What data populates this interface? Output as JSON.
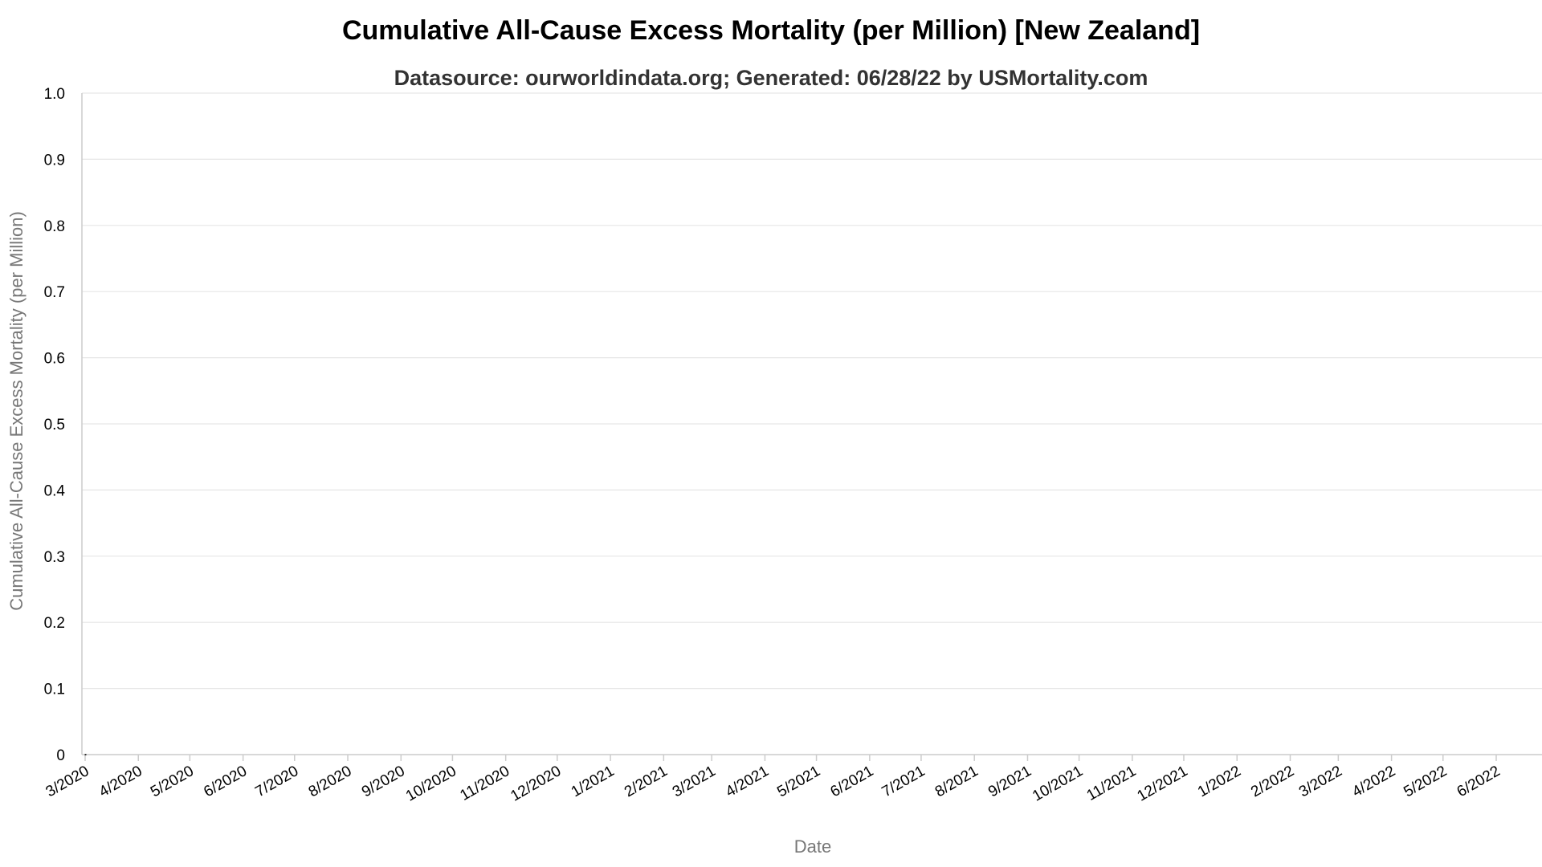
{
  "chart_data": {
    "type": "line",
    "title": "Cumulative All-Cause Excess Mortality (per Million) [New Zealand]",
    "subtitle": "Datasource: ourworldindata.org; Generated: 06/28/22 by USMortality.com",
    "xlabel": "Date",
    "ylabel": "Cumulative All-Cause Excess Mortality (per Million)",
    "ylim": [
      0,
      1
    ],
    "y_ticks": [
      "0",
      "0.1",
      "0.2",
      "0.3",
      "0.4",
      "0.5",
      "0.6",
      "0.7",
      "0.8",
      "0.9",
      "1.0"
    ],
    "x_ticks": [
      "3/2020",
      "4/2020",
      "5/2020",
      "6/2020",
      "7/2020",
      "8/2020",
      "9/2020",
      "10/2020",
      "11/2020",
      "12/2020",
      "1/2021",
      "2/2021",
      "3/2021",
      "4/2021",
      "5/2021",
      "6/2021",
      "7/2021",
      "8/2021",
      "9/2021",
      "10/2021",
      "11/2021",
      "12/2021",
      "1/2022",
      "2/2022",
      "3/2022",
      "4/2022",
      "5/2022",
      "6/2022"
    ],
    "x_range": [
      "2020-03-01",
      "2022-06-28"
    ],
    "grid": true,
    "series": [
      {
        "color": "#000000",
        "points": [
          {
            "x": "2020-03-01",
            "y": 0
          }
        ]
      }
    ]
  }
}
